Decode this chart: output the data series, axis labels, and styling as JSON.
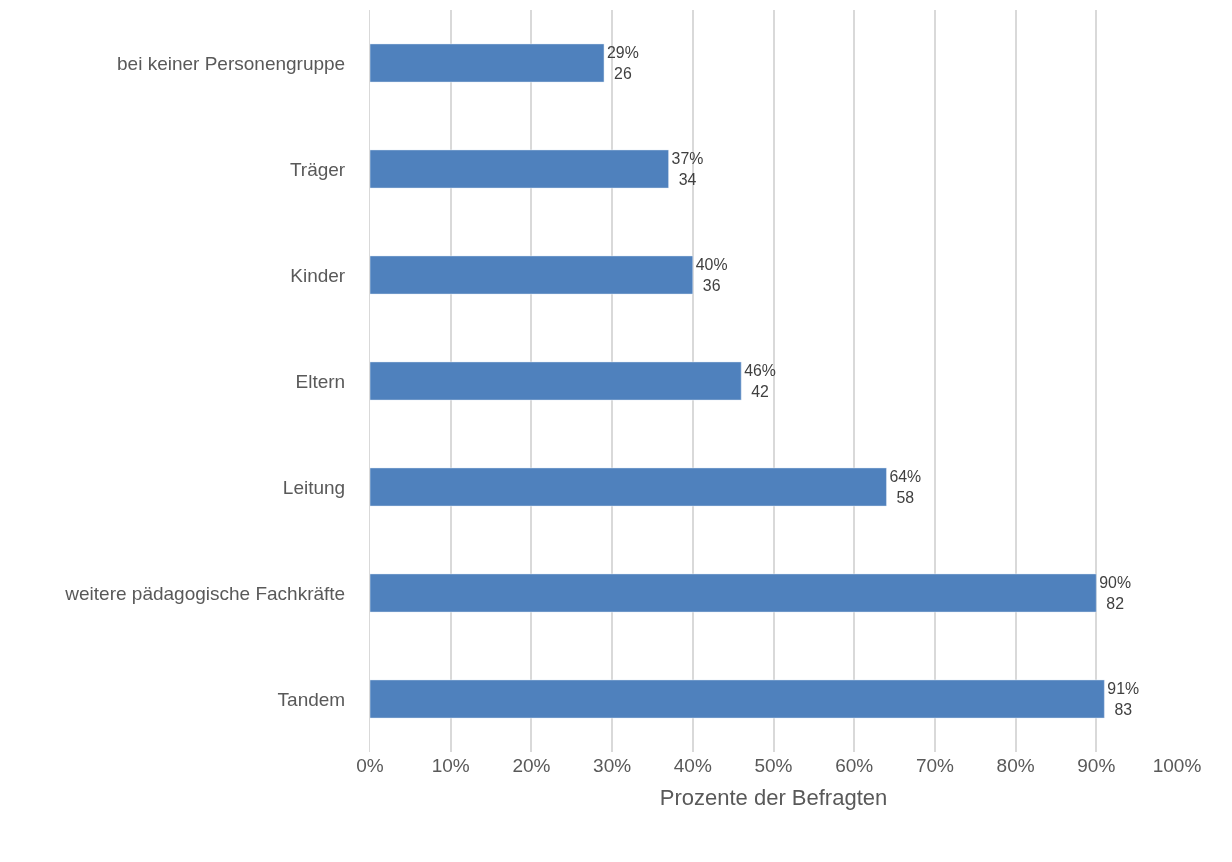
{
  "chart_data": {
    "type": "bar",
    "orientation": "horizontal",
    "xlabel": "Prozente der Befragten",
    "categories": [
      "bei keiner Personengruppe",
      "Träger",
      "Kinder",
      "Eltern",
      "Leitung",
      "weitere pädagogische Fachkräfte",
      "Tandem"
    ],
    "values": [
      29,
      37,
      40,
      46,
      64,
      90,
      91
    ],
    "value_labels": [
      "29%\n26",
      "37%\n34",
      "40%\n36",
      "46%\n42",
      "64%\n58",
      "90%\n82",
      "91%\n83"
    ],
    "color": "#4f81bd",
    "xlim": [
      0,
      100
    ],
    "xticks": [
      {
        "value": 0,
        "label": "0%"
      },
      {
        "value": 10,
        "label": "10%"
      },
      {
        "value": 20,
        "label": "20%"
      },
      {
        "value": 30,
        "label": "30%"
      },
      {
        "value": 40,
        "label": "40%"
      },
      {
        "value": 50,
        "label": "50%"
      },
      {
        "value": 60,
        "label": "60%"
      },
      {
        "value": 70,
        "label": "70%"
      },
      {
        "value": 80,
        "label": "80%"
      },
      {
        "value": 90,
        "label": "90%"
      },
      {
        "value": 100,
        "label": "100%"
      }
    ],
    "grid": "x",
    "legend": false
  }
}
